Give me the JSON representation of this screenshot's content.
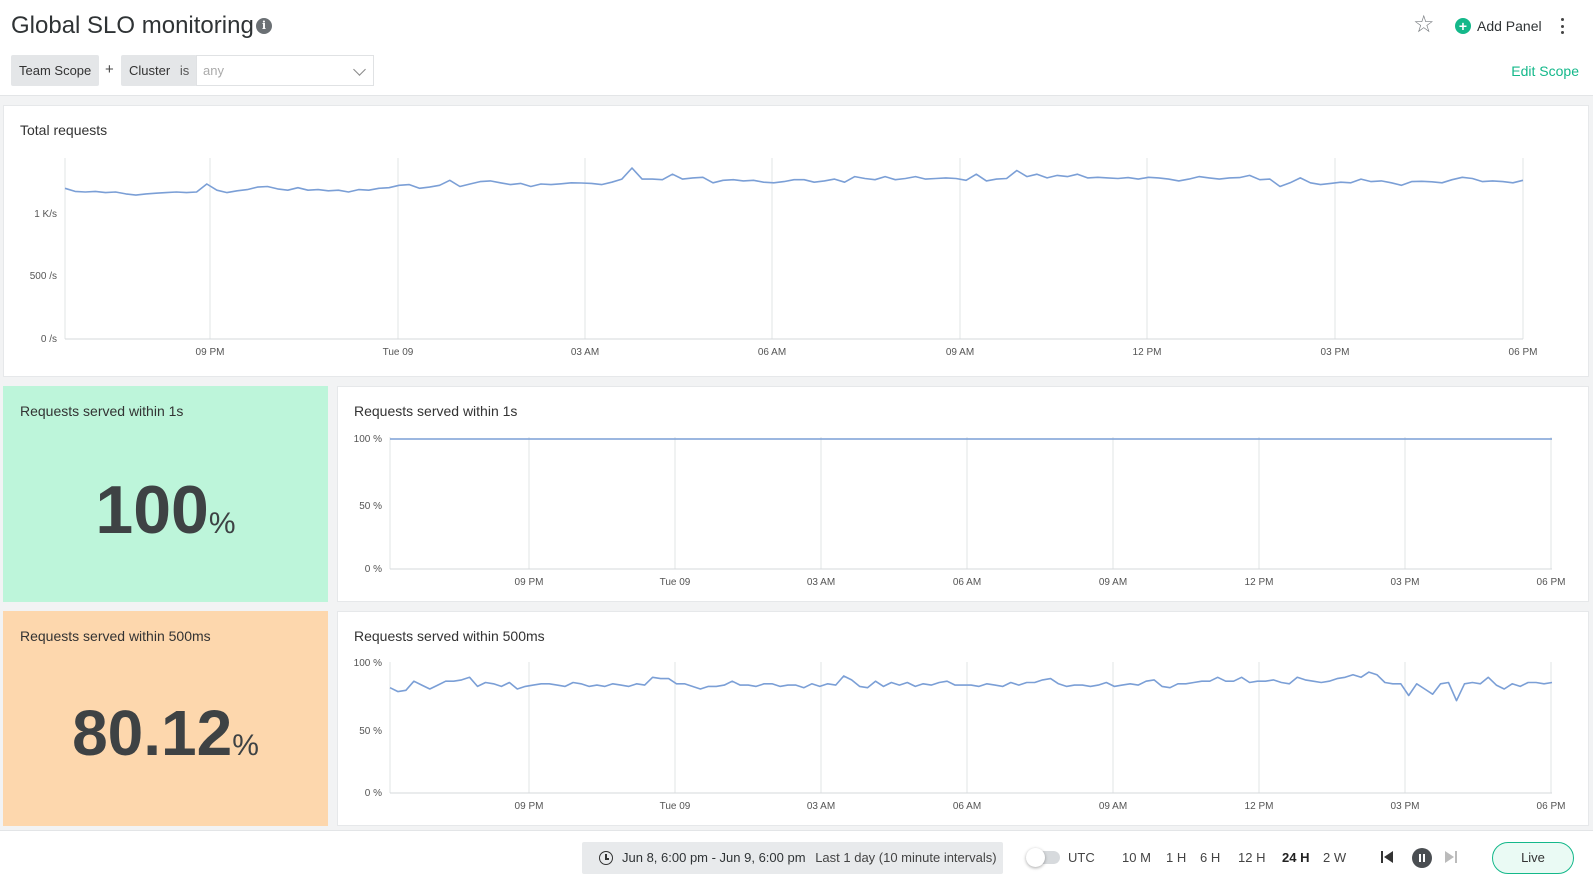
{
  "header": {
    "title": "Global SLO monitoring",
    "add_panel": "Add Panel",
    "scope": {
      "team_scope": "Team Scope",
      "plus": "+",
      "cluster_key": "Cluster",
      "cluster_op": "is",
      "cluster_value": "any",
      "edit_scope": "Edit Scope"
    }
  },
  "colors": {
    "accent": "#14b88a",
    "line": "#7b9fd6",
    "ok_bg": "#bdf5da",
    "warn_bg": "#fdd7ad"
  },
  "panels": {
    "total": {
      "title": "Total requests"
    },
    "stat1": {
      "title": "Requests served within 1s",
      "value": "100",
      "unit": "%"
    },
    "chart1": {
      "title": "Requests served within 1s"
    },
    "stat2": {
      "title": "Requests served within 500ms",
      "value": "80.12",
      "unit": "%"
    },
    "chart2": {
      "title": "Requests served within 500ms"
    }
  },
  "chart_data": [
    {
      "type": "line",
      "title": "Total requests",
      "x_ticks": [
        "09 PM",
        "Tue 09",
        "03 AM",
        "06 AM",
        "09 AM",
        "12 PM",
        "03 PM",
        "06 PM"
      ],
      "y_ticks": [
        "0 /s",
        "500 /s",
        "1 K/s"
      ],
      "ylim": [
        0,
        1500
      ],
      "grid": "vertical",
      "series": [
        {
          "values": [
            1225,
            1200,
            1195,
            1200,
            1190,
            1195,
            1180,
            1170,
            1180,
            1185,
            1190,
            1195,
            1190,
            1195,
            1260,
            1210,
            1190,
            1205,
            1215,
            1235,
            1240,
            1220,
            1210,
            1230,
            1210,
            1215,
            1205,
            1210,
            1195,
            1215,
            1210,
            1225,
            1230,
            1250,
            1255,
            1225,
            1235,
            1250,
            1290,
            1240,
            1260,
            1280,
            1285,
            1270,
            1255,
            1265,
            1240,
            1260,
            1255,
            1262,
            1270,
            1268,
            1265,
            1255,
            1275,
            1300,
            1390,
            1300,
            1300,
            1295,
            1340,
            1300,
            1310,
            1315,
            1270,
            1290,
            1295,
            1285,
            1290,
            1275,
            1270,
            1280,
            1295,
            1295,
            1275,
            1285,
            1300,
            1275,
            1320,
            1305,
            1295,
            1320,
            1295,
            1305,
            1320,
            1300,
            1305,
            1310,
            1305,
            1290,
            1340,
            1285,
            1300,
            1305,
            1370,
            1320,
            1340,
            1310,
            1330,
            1320,
            1340,
            1310,
            1315,
            1310,
            1305,
            1312,
            1300,
            1315,
            1310,
            1300,
            1285,
            1300,
            1320,
            1310,
            1300,
            1310,
            1312,
            1330,
            1295,
            1300,
            1240,
            1270,
            1310,
            1270,
            1255,
            1265,
            1275,
            1270,
            1300,
            1280,
            1285,
            1270,
            1250,
            1280,
            1282,
            1278,
            1270,
            1295,
            1315,
            1305,
            1280,
            1285,
            1280,
            1270,
            1290
          ]
        }
      ]
    },
    {
      "type": "line",
      "title": "Requests served within 1s",
      "x_ticks": [
        "09 PM",
        "Tue 09",
        "03 AM",
        "06 AM",
        "09 AM",
        "12 PM",
        "03 PM",
        "06 PM"
      ],
      "y_ticks": [
        "0 %",
        "50 %",
        "100 %"
      ],
      "ylim": [
        0,
        100
      ],
      "grid": "vertical",
      "series": [
        {
          "values": [
            100,
            100
          ]
        }
      ]
    },
    {
      "type": "line",
      "title": "Requests served within 500ms",
      "x_ticks": [
        "09 PM",
        "Tue 09",
        "03 AM",
        "06 AM",
        "09 AM",
        "12 PM",
        "03 PM",
        "06 PM"
      ],
      "y_ticks": [
        "0 %",
        "50 %",
        "100 %"
      ],
      "ylim": [
        0,
        100
      ],
      "grid": "vertical",
      "series": [
        {
          "values": [
            81,
            78,
            79,
            86,
            83,
            80,
            83,
            86,
            86,
            87,
            89,
            82,
            85,
            84,
            82,
            85,
            80,
            82,
            83,
            84,
            84,
            83,
            82,
            85,
            84,
            82,
            83,
            82,
            84,
            83,
            82,
            84,
            83,
            89,
            88,
            88,
            84,
            84,
            82,
            80,
            82,
            82,
            83,
            86,
            83,
            83,
            82,
            84,
            84,
            82,
            83,
            83,
            81,
            84,
            82,
            84,
            83,
            90,
            87,
            82,
            81,
            86,
            82,
            85,
            83,
            85,
            82,
            84,
            83,
            85,
            86,
            83,
            83,
            83,
            82,
            84,
            83,
            82,
            85,
            83,
            85,
            85,
            87,
            88,
            84,
            82,
            83,
            83,
            82,
            83,
            85,
            82,
            83,
            84,
            83,
            86,
            87,
            82,
            81,
            84,
            84,
            85,
            86,
            86,
            89,
            86,
            86,
            89,
            85,
            86,
            86,
            87,
            85,
            84,
            89,
            87,
            86,
            85,
            86,
            88,
            89,
            91,
            89,
            93,
            91,
            85,
            84,
            84,
            75,
            84,
            80,
            76,
            84,
            85,
            71,
            84,
            85,
            84,
            89,
            83,
            80,
            84,
            82,
            85,
            85,
            84,
            85
          ]
        }
      ]
    }
  ],
  "footer": {
    "range": "Jun 8, 6:00 pm - Jun 9, 6:00 pm",
    "range_sub": "Last 1 day (10 minute intervals)",
    "utc": "UTC",
    "intervals": [
      "10 M",
      "1 H",
      "6 H",
      "12 H",
      "24 H",
      "2 W"
    ],
    "active_interval": "24 H",
    "live": "Live"
  }
}
